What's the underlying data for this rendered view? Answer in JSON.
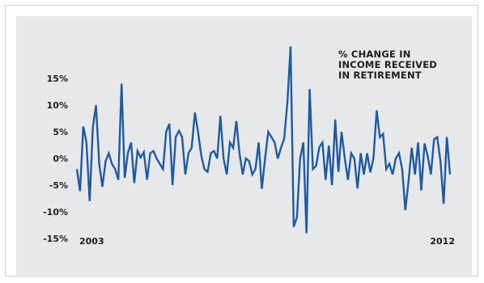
{
  "chart_data": {
    "type": "line",
    "title_lines": [
      "% CHANGE IN",
      "INCOME RECEIVED",
      "IN RETIREMENT"
    ],
    "y_ticks": [
      "15%",
      "10%",
      "5%",
      "0%",
      "-5%",
      "-10%",
      "-15%"
    ],
    "x_labels": {
      "start": "2003",
      "end": "2012"
    },
    "ylim": [
      -15,
      15
    ],
    "grid": false,
    "line_color": "#1f5aa3",
    "background_color": "#e7e8e9",
    "series": [
      {
        "values": [
          -2,
          -6.1,
          6,
          3,
          -8,
          5.8,
          10,
          -1,
          -5.3,
          -0.5,
          1,
          -1,
          -2,
          -4,
          14,
          -3.6,
          1,
          3,
          -4.6,
          1.4,
          0.2,
          1.2,
          -4,
          1,
          1.4,
          0,
          -1,
          -2,
          5,
          6.5,
          -5,
          4,
          5.2,
          4,
          -3,
          1,
          2,
          8.6,
          5,
          0.5,
          -2,
          -2.5,
          1,
          1.4,
          0,
          8,
          0,
          -3,
          3,
          2,
          7,
          1,
          -3,
          0,
          -0.5,
          -3,
          -2,
          3,
          -5.7,
          0,
          5,
          4,
          3,
          0,
          2,
          3.7,
          10.5,
          21,
          -12.8,
          -11,
          0,
          3,
          -14,
          13,
          -2,
          -1.4,
          2.1,
          3,
          -4,
          2.4,
          -5,
          7.3,
          -2.5,
          5,
          0,
          -4,
          1,
          0,
          -5.6,
          1,
          -3,
          1,
          -2.6,
          0,
          9,
          4,
          4.6,
          -2,
          -1,
          -3,
          0,
          1,
          -2,
          -9.7,
          -4.2,
          2,
          -3,
          3,
          -6,
          2.8,
          0.5,
          -3,
          3.6,
          4,
          -0.5,
          -8.5,
          4,
          -3
        ]
      }
    ]
  }
}
